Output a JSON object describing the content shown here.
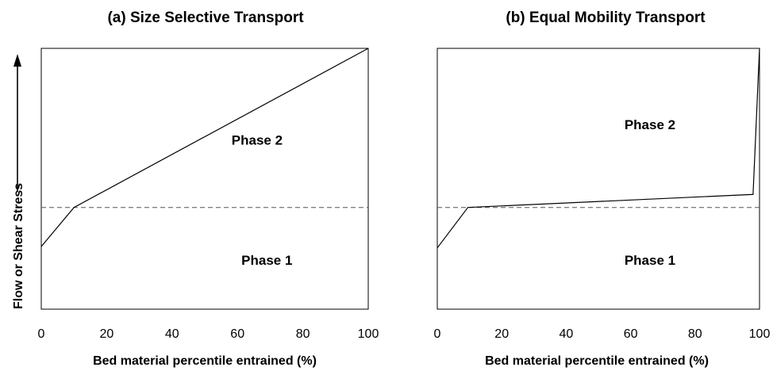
{
  "figure": {
    "ylabel": "Flow or Shear Stress"
  },
  "chart_data": [
    {
      "type": "line",
      "title": "(a) Size Selective Transport",
      "xlabel": "Bed material percentile entrained (%)",
      "ylabel": "Flow or Shear Stress",
      "xlim": [
        0,
        100
      ],
      "ylim": [
        0,
        100
      ],
      "x_ticks": [
        "0",
        "20",
        "40",
        "60",
        "80",
        "100"
      ],
      "y_ticks_shown": false,
      "grid": false,
      "series": [
        {
          "x": [
            0,
            10,
            100
          ],
          "y": [
            24,
            39,
            100
          ],
          "style": "solid"
        }
      ],
      "threshold": {
        "y": 39,
        "style": "dashed"
      },
      "annotations": [
        {
          "text": "Phase 2",
          "x": 66,
          "y": 63
        },
        {
          "text": "Phase 1",
          "x": 69,
          "y": 17
        }
      ]
    },
    {
      "type": "line",
      "title": "(b) Equal Mobility Transport",
      "xlabel": "Bed material percentile entrained (%)",
      "ylabel": "",
      "xlim": [
        0,
        100
      ],
      "ylim": [
        0,
        100
      ],
      "x_ticks": [
        "0",
        "20",
        "40",
        "60",
        "80",
        "100"
      ],
      "y_ticks_shown": false,
      "grid": false,
      "series": [
        {
          "x": [
            0,
            9.5,
            98,
            100
          ],
          "y": [
            23.5,
            39,
            44,
            100
          ],
          "style": "solid"
        }
      ],
      "threshold": {
        "y": 39,
        "style": "dashed"
      },
      "annotations": [
        {
          "text": "Phase 2",
          "x": 66,
          "y": 69
        },
        {
          "text": "Phase 1",
          "x": 66,
          "y": 17
        }
      ]
    }
  ]
}
